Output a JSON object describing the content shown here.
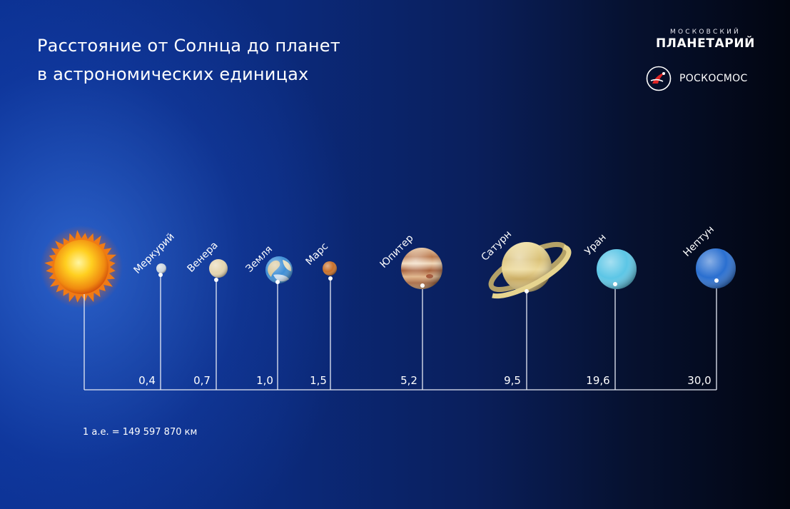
{
  "title": {
    "line1": "Расстояние от Солнца до планет",
    "line2": "в астрономических единицах"
  },
  "logos": {
    "planetarium_small": "МОСКОВСКИЙ",
    "planetarium_big": "ПЛАНЕТАРИЙ",
    "roscosmos": "РОСКОСМОС"
  },
  "planets": [
    {
      "name": "Меркурий",
      "distance": "0,4",
      "au": 0.4,
      "color": "#cfd8e0"
    },
    {
      "name": "Венера",
      "distance": "0,7",
      "au": 0.7,
      "color": "#e6d6b0"
    },
    {
      "name": "Земля",
      "distance": "1,0",
      "au": 1.0,
      "color": "#3f8fd6"
    },
    {
      "name": "Марс",
      "distance": "1,5",
      "au": 1.5,
      "color": "#c8702a"
    },
    {
      "name": "Юпитер",
      "distance": "5,2",
      "au": 5.2,
      "color": "#c98a5e"
    },
    {
      "name": "Сатурн",
      "distance": "9,5",
      "au": 9.5,
      "color": "#e2cf86"
    },
    {
      "name": "Уран",
      "distance": "19,6",
      "au": 19.6,
      "color": "#5cc6e6"
    },
    {
      "name": "Нептун",
      "distance": "30,0",
      "au": 30.0,
      "color": "#2a6fd0"
    }
  ],
  "footnote": "1 а.е. = 149 597 870 км"
}
